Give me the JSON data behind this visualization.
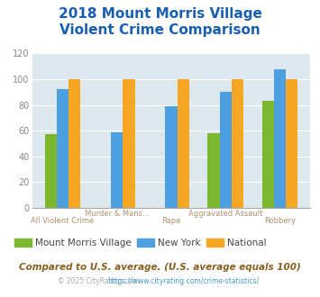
{
  "title_line1": "2018 Mount Morris Village",
  "title_line2": "Violent Crime Comparison",
  "mount_morris": [
    57,
    0,
    0,
    58,
    83
  ],
  "new_york": [
    92,
    59,
    79,
    90,
    108
  ],
  "national": [
    100,
    100,
    100,
    100,
    100
  ],
  "hide_mm": [
    1
  ],
  "colors": {
    "mount_morris": "#7cb82f",
    "new_york": "#4d9fdf",
    "national": "#f5a623"
  },
  "ylim": [
    0,
    120
  ],
  "yticks": [
    0,
    20,
    40,
    60,
    80,
    100,
    120
  ],
  "title_color": "#1a5faf",
  "background_color": "#dde8ee",
  "subtitle_text": "Compared to U.S. average. (U.S. average equals 100)",
  "footer_text": "© 2025 CityRating.com - https://www.cityrating.com/crime-statistics/",
  "legend_labels": [
    "Mount Morris Village",
    "New York",
    "National"
  ],
  "top_labels": [
    "",
    "Murder & Mans...",
    "",
    "Aggravated Assault",
    ""
  ],
  "bottom_labels": [
    "All Violent Crime",
    "",
    "Rape",
    "",
    "Robbery"
  ],
  "xtick_top_color": "#b09070",
  "xtick_bottom_color": "#b09070",
  "legend_text_color": "#444444",
  "subtitle_color": "#8a6020",
  "footer_color": "#aaaaaa",
  "footer_link_color": "#4499cc"
}
